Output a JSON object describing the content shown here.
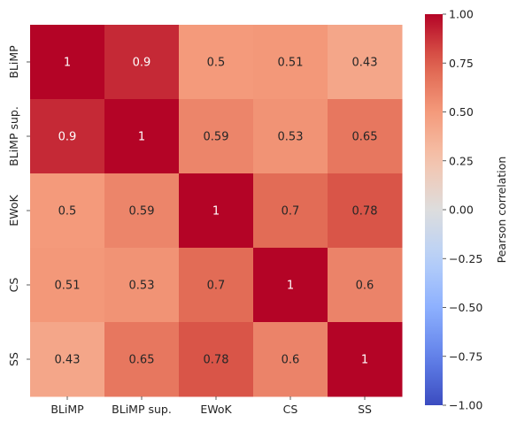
{
  "chart_data": {
    "type": "heatmap",
    "row_labels": [
      "BLiMP",
      "BLiMP sup.",
      "EWoK",
      "CS",
      "SS"
    ],
    "col_labels": [
      "BLiMP",
      "BLiMP sup.",
      "EWoK",
      "CS",
      "SS"
    ],
    "values": [
      [
        1,
        0.9,
        0.5,
        0.51,
        0.43
      ],
      [
        0.9,
        1,
        0.59,
        0.53,
        0.65
      ],
      [
        0.5,
        0.59,
        1,
        0.7,
        0.78
      ],
      [
        0.51,
        0.53,
        0.7,
        1,
        0.6
      ],
      [
        0.43,
        0.65,
        0.78,
        0.6,
        1
      ]
    ],
    "annotations": [
      [
        "1",
        "0.9",
        "0.5",
        "0.51",
        "0.43"
      ],
      [
        "0.9",
        "1",
        "0.59",
        "0.53",
        "0.65"
      ],
      [
        "0.5",
        "0.59",
        "1",
        "0.7",
        "0.78"
      ],
      [
        "0.51",
        "0.53",
        "0.7",
        "1",
        "0.6"
      ],
      [
        "0.43",
        "0.65",
        "0.78",
        "0.6",
        "1"
      ]
    ],
    "colormap": "coolwarm",
    "vmin": -1,
    "vmax": 1,
    "colorbar": {
      "label": "Pearson correlation",
      "ticks": [
        1.0,
        0.75,
        0.5,
        0.25,
        0.0,
        -0.25,
        -0.5,
        -0.75,
        -1.0
      ],
      "tick_labels": [
        "1.00",
        "0.75",
        "0.50",
        "0.25",
        "0.00",
        "−0.25",
        "−0.50",
        "−0.75",
        "−1.00"
      ]
    },
    "title": "",
    "xlabel": "",
    "ylabel": ""
  }
}
